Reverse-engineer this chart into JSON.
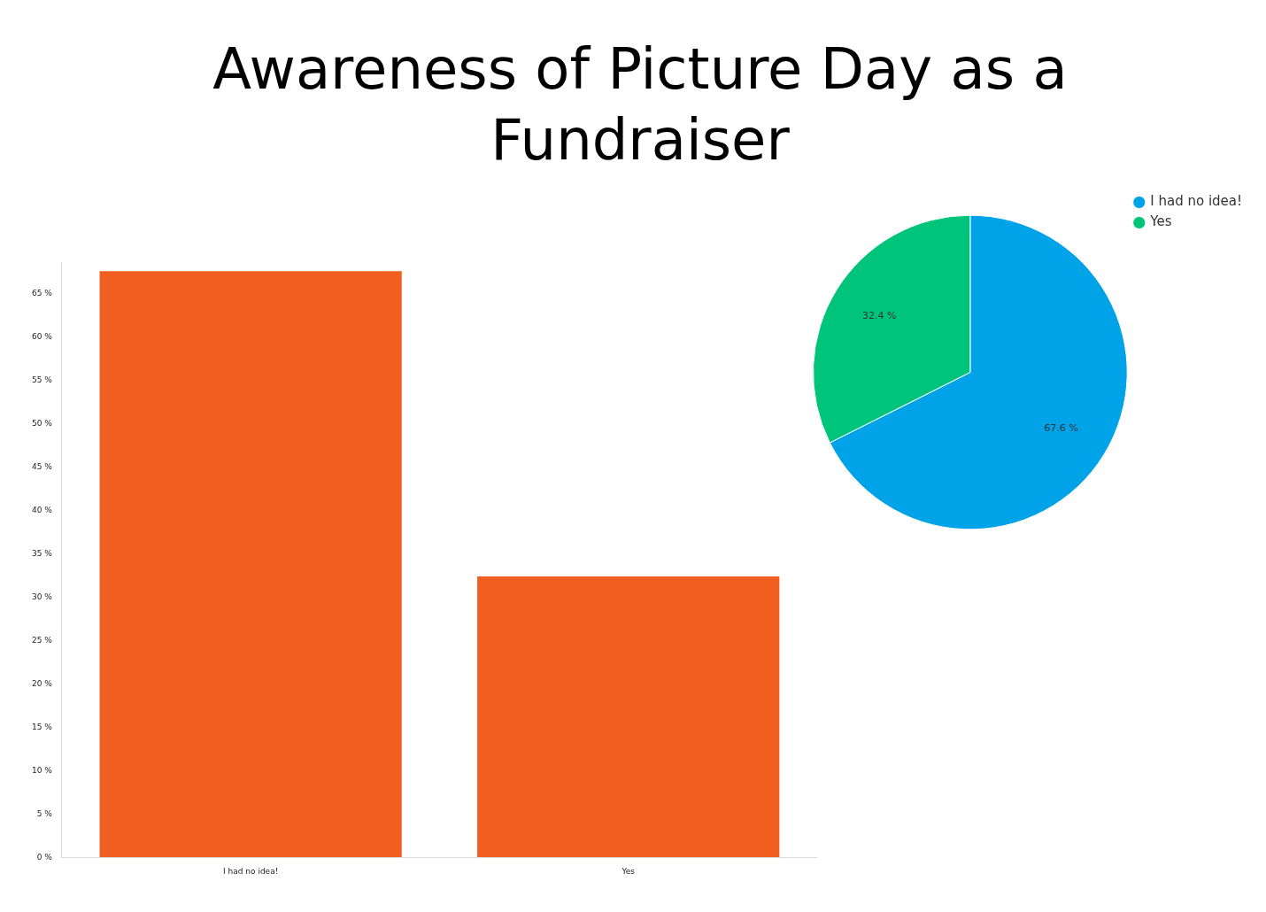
{
  "chart_data": [
    {
      "type": "bar",
      "title": "Awareness of Picture Day as a Fundraiser",
      "categories": [
        "I had no idea!",
        "Yes"
      ],
      "values": [
        67.6,
        32.4
      ],
      "color": "#f05f1f",
      "ylim": [
        0,
        68.6
      ],
      "yticks": [
        {
          "value": 0,
          "label": "0 %"
        },
        {
          "value": 5,
          "label": "5 %"
        },
        {
          "value": 10,
          "label": "10 %"
        },
        {
          "value": 15,
          "label": "15 %"
        },
        {
          "value": 20,
          "label": "20 %"
        },
        {
          "value": 25,
          "label": "25 %"
        },
        {
          "value": 30,
          "label": "30 %"
        },
        {
          "value": 35,
          "label": "35 %"
        },
        {
          "value": 40,
          "label": "40 %"
        },
        {
          "value": 45,
          "label": "45 %"
        },
        {
          "value": 50,
          "label": "50 %"
        },
        {
          "value": 55,
          "label": "55 %"
        },
        {
          "value": 60,
          "label": "60 %"
        },
        {
          "value": 65,
          "label": "65 %"
        }
      ],
      "grid": false
    },
    {
      "type": "pie",
      "categories": [
        "I had no idea!",
        "Yes"
      ],
      "values": [
        67.6,
        32.4
      ],
      "colors": [
        "#00a2e8",
        "#00c47a"
      ],
      "value_labels": [
        "67.6 %",
        "32.4 %"
      ],
      "legend": "top right"
    }
  ]
}
